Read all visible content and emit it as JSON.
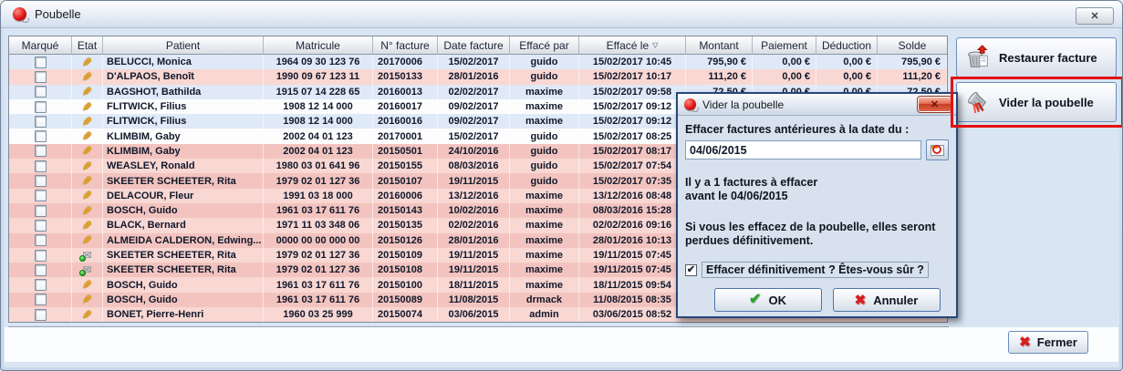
{
  "window": {
    "title": "Poubelle"
  },
  "icons": {
    "pencil": "✎",
    "sent_envelope": "✉",
    "sort_desc": "▽",
    "check": "✔",
    "cross_red": "✖",
    "close_x": "✕"
  },
  "colors": {
    "row_blue": "#dfe9f7",
    "row_white": "#fdfdfe",
    "row_pink_light": "#f9d7d3",
    "row_pink_dark": "#f3c4bf",
    "annotation_red": "#e31212"
  },
  "table": {
    "columns": [
      "Marqué",
      "Etat",
      "Patient",
      "Matricule",
      "N° facture",
      "Date facture",
      "Effacé par",
      "Effacé le",
      "Montant",
      "Paiement",
      "Déduction",
      "Solde"
    ],
    "sorted_column": "Effacé le",
    "rows": [
      {
        "tone": "blue",
        "etat": "pencil",
        "patient": "BELUCCI, Monica",
        "matricule": "1964 09 30 123 76",
        "n_facture": "20170006",
        "date_facture": "15/02/2017",
        "efface_par": "guido",
        "efface_le": "15/02/2017 10:45",
        "montant": "795,90 €",
        "paiement": "0,00 €",
        "deduction": "0,00 €",
        "solde": "795,90 €"
      },
      {
        "tone": "pinkl",
        "etat": "pencil",
        "patient": "D'ALPAOS, Benoît",
        "matricule": "1990 09 67 123 11",
        "n_facture": "20150133",
        "date_facture": "28/01/2016",
        "efface_par": "guido",
        "efface_le": "15/02/2017 10:17",
        "montant": "111,20 €",
        "paiement": "0,00 €",
        "deduction": "0,00 €",
        "solde": "111,20 €"
      },
      {
        "tone": "blue",
        "etat": "pencil",
        "patient": "BAGSHOT, Bathilda",
        "matricule": "1915 07 14 228 65",
        "n_facture": "20160013",
        "date_facture": "02/02/2017",
        "efface_par": "maxime",
        "efface_le": "15/02/2017 09:58",
        "montant": "72,50 €",
        "paiement": "0,00 €",
        "deduction": "0,00 €",
        "solde": "72,50 €"
      },
      {
        "tone": "white",
        "etat": "pencil",
        "patient": "FLITWICK, Filius",
        "matricule": "1908 12 14 000",
        "n_facture": "20160017",
        "date_facture": "09/02/2017",
        "efface_par": "maxime",
        "efface_le": "15/02/2017 09:12",
        "montant": "",
        "paiement": "",
        "deduction": "",
        "solde": ""
      },
      {
        "tone": "blue",
        "etat": "pencil",
        "patient": "FLITWICK, Filius",
        "matricule": "1908 12 14 000",
        "n_facture": "20160016",
        "date_facture": "09/02/2017",
        "efface_par": "maxime",
        "efface_le": "15/02/2017 09:12",
        "montant": "",
        "paiement": "",
        "deduction": "",
        "solde": ""
      },
      {
        "tone": "white",
        "etat": "pencil",
        "patient": "KLIMBIM, Gaby",
        "matricule": "2002 04 01 123",
        "n_facture": "20170001",
        "date_facture": "15/02/2017",
        "efface_par": "guido",
        "efface_le": "15/02/2017 08:25",
        "montant": "",
        "paiement": "",
        "deduction": "",
        "solde": ""
      },
      {
        "tone": "pinkd",
        "etat": "pencil",
        "patient": "KLIMBIM, Gaby",
        "matricule": "2002 04 01 123",
        "n_facture": "20150501",
        "date_facture": "24/10/2016",
        "efface_par": "guido",
        "efface_le": "15/02/2017 08:17",
        "montant": "",
        "paiement": "",
        "deduction": "",
        "solde": ""
      },
      {
        "tone": "pinkl",
        "etat": "pencil",
        "patient": "WEASLEY, Ronald",
        "matricule": "1980 03 01 641 96",
        "n_facture": "20150155",
        "date_facture": "08/03/2016",
        "efface_par": "guido",
        "efface_le": "15/02/2017 07:54",
        "montant": "",
        "paiement": "",
        "deduction": "",
        "solde": ""
      },
      {
        "tone": "pinkd",
        "etat": "pencil",
        "patient": "SKEETER SCHEETER, Rita",
        "matricule": "1979 02 01 127 36",
        "n_facture": "20150107",
        "date_facture": "19/11/2015",
        "efface_par": "guido",
        "efface_le": "15/02/2017 07:35",
        "montant": "",
        "paiement": "",
        "deduction": "",
        "solde": ""
      },
      {
        "tone": "pinkl",
        "etat": "pencil",
        "patient": "DELACOUR, Fleur",
        "matricule": "1991 03 18 000",
        "n_facture": "20160006",
        "date_facture": "13/12/2016",
        "efface_par": "maxime",
        "efface_le": "13/12/2016 08:48",
        "montant": "",
        "paiement": "",
        "deduction": "",
        "solde": ""
      },
      {
        "tone": "pinkd",
        "etat": "pencil",
        "patient": "BOSCH, Guido",
        "matricule": "1961 03 17 611 76",
        "n_facture": "20150143",
        "date_facture": "10/02/2016",
        "efface_par": "maxime",
        "efface_le": "08/03/2016 15:28",
        "montant": "",
        "paiement": "",
        "deduction": "",
        "solde": ""
      },
      {
        "tone": "pinkl",
        "etat": "pencil",
        "patient": "BLACK, Bernard",
        "matricule": "1971 11 03 348 06",
        "n_facture": "20150135",
        "date_facture": "02/02/2016",
        "efface_par": "maxime",
        "efface_le": "02/02/2016 09:16",
        "montant": "",
        "paiement": "",
        "deduction": "",
        "solde": ""
      },
      {
        "tone": "pinkd",
        "etat": "pencil",
        "patient": "ALMEIDA CALDERON, Edwing...",
        "matricule": "0000 00 00 000 00",
        "n_facture": "20150126",
        "date_facture": "28/01/2016",
        "efface_par": "maxime",
        "efface_le": "28/01/2016 10:13",
        "montant": "",
        "paiement": "",
        "deduction": "",
        "solde": ""
      },
      {
        "tone": "pinkl",
        "etat": "sent",
        "patient": "SKEETER SCHEETER, Rita",
        "matricule": "1979 02 01 127 36",
        "n_facture": "20150109",
        "date_facture": "19/11/2015",
        "efface_par": "maxime",
        "efface_le": "19/11/2015 07:45",
        "montant": "",
        "paiement": "",
        "deduction": "",
        "solde": ""
      },
      {
        "tone": "pinkd",
        "etat": "sent",
        "patient": "SKEETER SCHEETER, Rita",
        "matricule": "1979 02 01 127 36",
        "n_facture": "20150108",
        "date_facture": "19/11/2015",
        "efface_par": "maxime",
        "efface_le": "19/11/2015 07:45",
        "montant": "",
        "paiement": "",
        "deduction": "",
        "solde": ""
      },
      {
        "tone": "pinkl",
        "etat": "pencil",
        "patient": "BOSCH, Guido",
        "matricule": "1961 03 17 611 76",
        "n_facture": "20150100",
        "date_facture": "18/11/2015",
        "efface_par": "maxime",
        "efface_le": "18/11/2015 09:54",
        "montant": "",
        "paiement": "",
        "deduction": "",
        "solde": ""
      },
      {
        "tone": "pinkd",
        "etat": "pencil",
        "patient": "BOSCH, Guido",
        "matricule": "1961 03 17 611 76",
        "n_facture": "20150089",
        "date_facture": "11/08/2015",
        "efface_par": "drmack",
        "efface_le": "11/08/2015 08:35",
        "montant": "",
        "paiement": "",
        "deduction": "",
        "solde": ""
      },
      {
        "tone": "pinkl",
        "etat": "pencil",
        "patient": "BONET, Pierre-Henri",
        "matricule": "1960 03 25 999",
        "n_facture": "20150074",
        "date_facture": "03/06/2015",
        "efface_par": "admin",
        "efface_le": "03/06/2015 08:52",
        "montant": "",
        "paiement": "",
        "deduction": "",
        "solde": ""
      }
    ]
  },
  "side_buttons": {
    "restore_label": "Restaurer facture",
    "empty_label": "Vider la poubelle"
  },
  "footer": {
    "close_label": "Fermer"
  },
  "dialog": {
    "title": "Vider la poubelle",
    "date_label": "Effacer factures antérieures à la date du :",
    "date_value": "04/06/2015",
    "count_line1": "Il y a 1 factures à effacer",
    "count_line2": "avant le 04/06/2015",
    "warning_line1": "Si vous les effacez de la poubelle, elles seront",
    "warning_line2": "perdues définitivement.",
    "confirm_checkbox_label": "Effacer définitivement ? Êtes-vous sûr ?",
    "confirm_checked": true,
    "ok_label": "OK",
    "cancel_label": "Annuler"
  }
}
